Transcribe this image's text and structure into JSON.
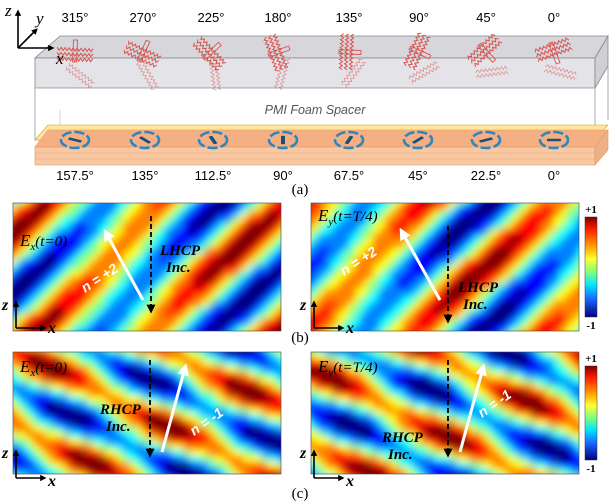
{
  "panel_a": {
    "axes": {
      "z": "z",
      "y": "y",
      "x": "x"
    },
    "top_angles": [
      "315°",
      "270°",
      "225°",
      "180°",
      "135°",
      "90°",
      "45°",
      "0°"
    ],
    "bottom_angles": [
      "157.5°",
      "135°",
      "112.5°",
      "90°",
      "67.5°",
      "45°",
      "22.5°",
      "0°"
    ],
    "spacer_label": "PMI Foam Spacer",
    "caption": "(a)"
  },
  "panel_b": {
    "caption": "(b)",
    "left": {
      "field_main": "E",
      "field_sub": "x",
      "field_time": "(t=0)",
      "order_label": "n = +2",
      "inc_line1": "LHCP",
      "inc_line2": "Inc.",
      "axis_z": "z",
      "axis_x": "x"
    },
    "right": {
      "field_main": "E",
      "field_sub": "y",
      "field_time": "(t=T/4)",
      "order_label": "n = +2",
      "inc_line1": "LHCP",
      "inc_line2": "Inc.",
      "axis_z": "z",
      "axis_x": "x"
    },
    "colorbar": {
      "max": "+1",
      "min": "-1"
    }
  },
  "panel_c": {
    "caption": "(c)",
    "left": {
      "field_main": "E",
      "field_sub": "x",
      "field_time": "(t=0)",
      "order_label": "n = -1",
      "inc_line1": "RHCP",
      "inc_line2": "Inc.",
      "axis_z": "z",
      "axis_x": "x"
    },
    "right": {
      "field_main": "E",
      "field_sub": "y",
      "field_time": "(t=T/4)",
      "order_label": "n = -1",
      "inc_line1": "RHCP",
      "inc_line2": "Inc.",
      "axis_z": "z",
      "axis_x": "x"
    },
    "colorbar": {
      "max": "+1",
      "min": "-1"
    }
  },
  "colors": {
    "glass": "#d9d9dd",
    "substrate": "#f4b083",
    "substrate_edge": "#e39862",
    "yellow_layer": "#ffe699",
    "ring": "#2e86c1",
    "ring_bar": "#1f4e79",
    "meta_red": "#d9534f",
    "jet_low": "#00007f",
    "jet_high": "#7f0000"
  }
}
